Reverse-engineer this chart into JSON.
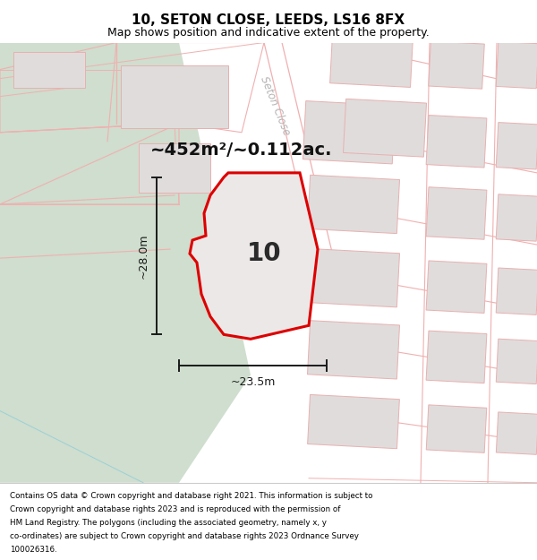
{
  "title": "10, SETON CLOSE, LEEDS, LS16 8FX",
  "subtitle": "Map shows position and indicative extent of the property.",
  "footer": "Contains OS data © Crown copyright and database right 2021. This information is subject to Crown copyright and database rights 2023 and is reproduced with the permission of HM Land Registry. The polygons (including the associated geometry, namely x, y co-ordinates) are subject to Crown copyright and database rights 2023 Ordnance Survey 100026316.",
  "area_label": "~452m²/~0.112ac.",
  "width_label": "~23.5m",
  "height_label": "~28.0m",
  "property_number": "10",
  "bg_color": "#ffffff",
  "green_color": "#cfdece",
  "building_fill": "#e0dcdc",
  "building_edge": "#e8b0b0",
  "parcel_edge": "#f0b0b0",
  "plot_fill": "#ede8e8",
  "plot_edge": "#dd0000",
  "plot_lw": 2.2,
  "dim_color": "#1a1a1a",
  "street_color": "#b8b4b4",
  "title_fontsize": 11,
  "subtitle_fontsize": 9,
  "footer_fontsize": 6.3,
  "area_fontsize": 14,
  "dim_fontsize": 9,
  "property_num_fontsize": 20,
  "street_fontsize": 8.5
}
